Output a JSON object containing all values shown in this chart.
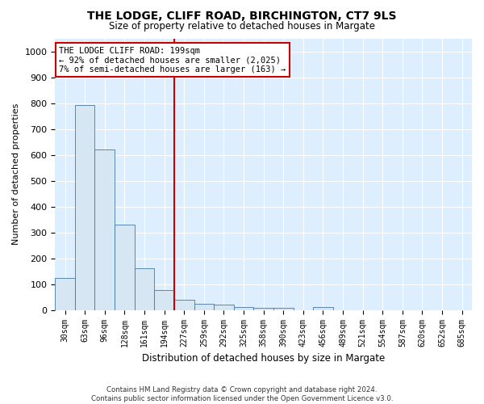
{
  "title1": "THE LODGE, CLIFF ROAD, BIRCHINGTON, CT7 9LS",
  "title2": "Size of property relative to detached houses in Margate",
  "xlabel": "Distribution of detached houses by size in Margate",
  "ylabel": "Number of detached properties",
  "bar_color": "#d6e6f2",
  "bar_edge_color": "#4477aa",
  "vline_color": "#cc0000",
  "vline_x": 5.5,
  "annotation_line1": "THE LODGE CLIFF ROAD: 199sqm",
  "annotation_line2": "← 92% of detached houses are smaller (2,025)",
  "annotation_line3": "7% of semi-detached houses are larger (163) →",
  "annotation_box_color": "#ffffff",
  "annotation_box_edge": "#cc0000",
  "categories": [
    "30sqm",
    "63sqm",
    "96sqm",
    "128sqm",
    "161sqm",
    "194sqm",
    "227sqm",
    "259sqm",
    "292sqm",
    "325sqm",
    "358sqm",
    "390sqm",
    "423sqm",
    "456sqm",
    "489sqm",
    "521sqm",
    "554sqm",
    "587sqm",
    "620sqm",
    "652sqm",
    "685sqm"
  ],
  "values": [
    125,
    793,
    620,
    330,
    163,
    78,
    40,
    25,
    22,
    13,
    8,
    8,
    0,
    10,
    0,
    0,
    0,
    0,
    0,
    0,
    0
  ],
  "ylim": [
    0,
    1050
  ],
  "yticks": [
    0,
    100,
    200,
    300,
    400,
    500,
    600,
    700,
    800,
    900,
    1000
  ],
  "footer1": "Contains HM Land Registry data © Crown copyright and database right 2024.",
  "footer2": "Contains public sector information licensed under the Open Government Licence v3.0.",
  "fig_bg_color": "#ffffff",
  "plot_bg_color": "#ddeeff"
}
